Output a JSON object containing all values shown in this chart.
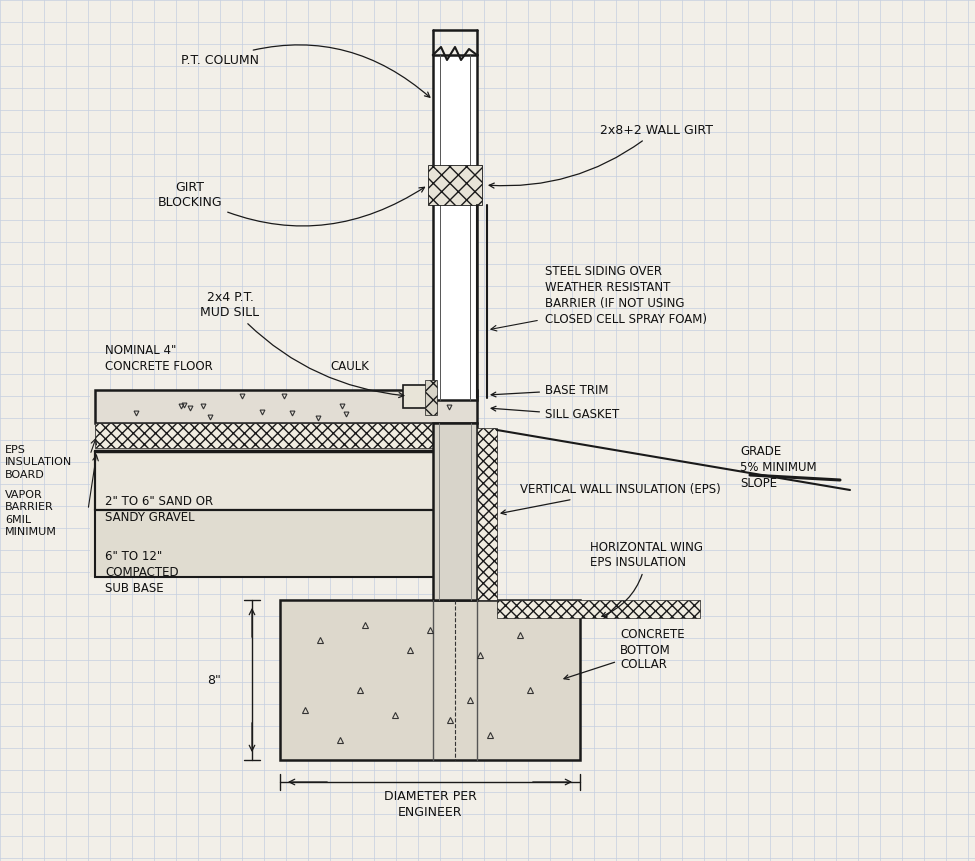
{
  "bg_color": "#f2efe8",
  "grid_color": "#c5cfe0",
  "line_color": "#1a1a1a",
  "sketch_color": "#111111",
  "labels": {
    "pt_column": "P.T. COLUMN",
    "girt_blocking": "GIRT\nBLOCKING",
    "wall_girt": "2x8+2 WALL GIRT",
    "mud_sill": "2x4 P.T.\nMUD SILL",
    "caulk": "CAULK",
    "concrete_floor": "NOMINAL 4\"\nCONCRETE FLOOR",
    "eps_board": "EPS\nINSULATION\nBOARD",
    "vapor_barrier": "VAPOR\nBARRIER\n6MIL\nMINIMUM",
    "sand": "2\" TO 6\" SAND OR\nSANDY GRAVEL",
    "subbase": "6\" TO 12\"\nCOMPACTED\nSUB BASE",
    "steel_siding": "STEEL SIDING OVER\nWEATHER RESISTANT\nBARRIER (IF NOT USING\nCLOSED CELL SPRAY FOAM)",
    "base_trim": "BASE TRIM",
    "sill_gasket": "SILL GASKET",
    "grade": "GRADE\n5% MINIMUM\nSLOPE",
    "vertical_insulation": "VERTICAL WALL INSULATION (EPS)",
    "horizontal_insulation": "HORIZONTAL WING\nEPS INSULATION",
    "concrete_collar": "CONCRETE\nBOTTOM\nCOLLAR",
    "diameter": "DIAMETER PER\nENGINEER",
    "eight_inch": "8\""
  }
}
